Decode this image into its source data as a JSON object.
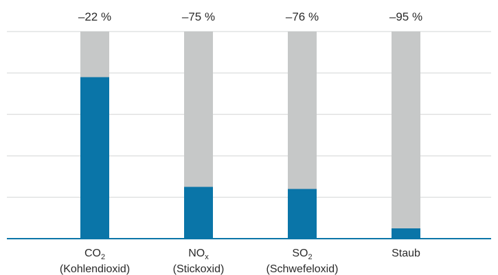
{
  "chart_data": {
    "type": "bar",
    "stacked": true,
    "categories": [
      {
        "main": "CO",
        "sub": "2",
        "line2": "(Kohlendioxid)"
      },
      {
        "main": "NO",
        "sub": "x",
        "line2": "(Stickoxid)"
      },
      {
        "main": "SO",
        "sub": "2",
        "line2": "(Schwefeloxid)"
      },
      {
        "main": "Staub",
        "sub": "",
        "line2": ""
      }
    ],
    "reduction_labels": [
      "–22 %",
      "–75 %",
      "–76 %",
      "–95 %"
    ],
    "series": [
      {
        "values": [
          78,
          25,
          24,
          5
        ],
        "color": "#0a75a8"
      },
      {
        "values": [
          22,
          75,
          76,
          95
        ],
        "color": "#c6c8c8"
      }
    ],
    "ylim": [
      0,
      100
    ],
    "grid": true,
    "grid_lines": 5,
    "colors": {
      "grid": "#d2d4d4",
      "axis": "#0a75a8",
      "text": "#2a2a2a"
    }
  }
}
